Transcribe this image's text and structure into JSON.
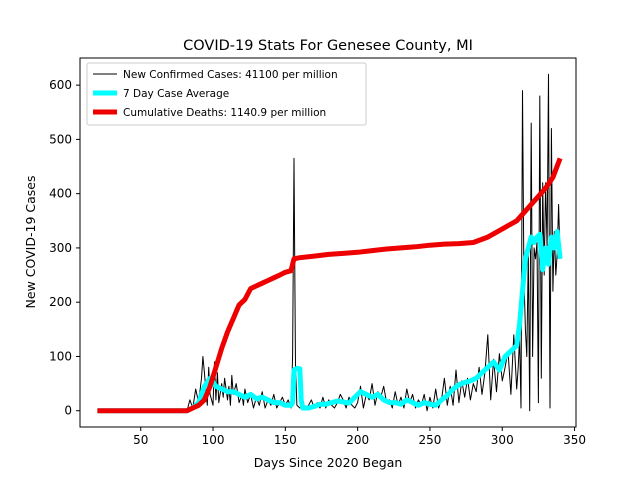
{
  "chart_data": {
    "type": "line",
    "title": "COVID-19 Stats For Genesee County, MI",
    "xlabel": "Days Since 2020 Began",
    "ylabel": "New COVID-19 Cases",
    "xlim": [
      8,
      351
    ],
    "ylim": [
      -30,
      650
    ],
    "xticks": [
      50,
      100,
      150,
      200,
      250,
      300,
      350
    ],
    "yticks": [
      0,
      100,
      200,
      300,
      400,
      500,
      600
    ],
    "grid": false,
    "legend_position": "top-left",
    "series": [
      {
        "name": "New Confirmed Cases: 41100 per million",
        "color": "#000000",
        "width": 1,
        "x": [
          20,
          82,
          84,
          86,
          88,
          90,
          92,
          93,
          94,
          95,
          96,
          97,
          98,
          100,
          101,
          102,
          103,
          104,
          106,
          107,
          108,
          110,
          111,
          112,
          113,
          114,
          116,
          118,
          120,
          121,
          122,
          124,
          126,
          128,
          130,
          132,
          134,
          136,
          138,
          140,
          142,
          144,
          146,
          148,
          150,
          152,
          154,
          155,
          156,
          157,
          158,
          160,
          162,
          164,
          166,
          168,
          170,
          172,
          174,
          176,
          178,
          180,
          182,
          184,
          186,
          188,
          190,
          192,
          194,
          196,
          198,
          200,
          202,
          204,
          206,
          208,
          210,
          212,
          214,
          216,
          218,
          220,
          222,
          224,
          226,
          228,
          230,
          232,
          234,
          236,
          238,
          240,
          242,
          244,
          246,
          248,
          250,
          252,
          254,
          256,
          258,
          260,
          262,
          264,
          266,
          268,
          270,
          272,
          274,
          276,
          278,
          280,
          282,
          284,
          286,
          288,
          290,
          292,
          294,
          296,
          298,
          300,
          302,
          304,
          306,
          308,
          310,
          311,
          312,
          313,
          314,
          315,
          316,
          317,
          318,
          319,
          320,
          321,
          322,
          323,
          324,
          325,
          326,
          327,
          328,
          329,
          330,
          331,
          332,
          333,
          334,
          335,
          336,
          337,
          338,
          339,
          340
        ],
        "y": [
          0,
          0,
          20,
          5,
          40,
          15,
          60,
          100,
          70,
          40,
          10,
          80,
          30,
          10,
          90,
          20,
          70,
          15,
          50,
          25,
          60,
          20,
          45,
          10,
          65,
          30,
          50,
          15,
          30,
          10,
          40,
          15,
          30,
          5,
          25,
          10,
          35,
          5,
          20,
          10,
          30,
          5,
          15,
          25,
          10,
          20,
          5,
          100,
          465,
          80,
          10,
          5,
          15,
          5,
          10,
          20,
          5,
          15,
          5,
          25,
          5,
          20,
          10,
          5,
          15,
          30,
          20,
          5,
          25,
          10,
          5,
          15,
          45,
          5,
          30,
          20,
          50,
          10,
          35,
          25,
          45,
          15,
          20,
          5,
          35,
          10,
          25,
          5,
          40,
          15,
          30,
          5,
          20,
          10,
          30,
          0,
          25,
          5,
          40,
          5,
          20,
          60,
          10,
          45,
          10,
          75,
          15,
          55,
          25,
          60,
          20,
          50,
          35,
          80,
          30,
          70,
          140,
          20,
          95,
          35,
          105,
          55,
          80,
          110,
          30,
          140,
          40,
          80,
          135,
          5,
          590,
          250,
          150,
          100,
          290,
          0,
          530,
          100,
          300,
          280,
          310,
          15,
          580,
          60,
          420,
          250,
          420,
          300,
          620,
          5,
          520,
          220,
          330,
          250,
          290,
          380,
          280
        ]
      },
      {
        "name": "7 Day Case Average",
        "color": "#00ffff",
        "width": 5,
        "x": [
          20,
          82,
          86,
          90,
          94,
          98,
          102,
          106,
          110,
          114,
          118,
          122,
          126,
          130,
          134,
          138,
          142,
          146,
          150,
          154,
          155,
          156,
          158,
          160,
          161,
          162,
          166,
          170,
          174,
          178,
          182,
          186,
          190,
          194,
          198,
          202,
          206,
          210,
          214,
          218,
          222,
          226,
          230,
          234,
          238,
          242,
          246,
          250,
          254,
          258,
          262,
          266,
          270,
          274,
          278,
          282,
          286,
          290,
          294,
          298,
          302,
          306,
          310,
          312,
          314,
          316,
          318,
          320,
          322,
          324,
          326,
          328,
          330,
          332,
          334,
          336,
          338,
          340
        ],
        "y": [
          0,
          0,
          5,
          15,
          45,
          60,
          45,
          40,
          35,
          35,
          30,
          25,
          30,
          22,
          25,
          20,
          15,
          15,
          10,
          10,
          15,
          75,
          78,
          77,
          20,
          5,
          5,
          8,
          12,
          12,
          15,
          18,
          16,
          14,
          25,
          35,
          30,
          25,
          30,
          20,
          15,
          15,
          12,
          20,
          15,
          10,
          15,
          12,
          10,
          20,
          28,
          40,
          48,
          52,
          55,
          60,
          70,
          80,
          90,
          75,
          100,
          110,
          120,
          160,
          220,
          280,
          300,
          320,
          310,
          320,
          325,
          260,
          300,
          270,
          320,
          300,
          330,
          280
        ]
      },
      {
        "name": "Cumulative Deaths: 1140.9 per million",
        "color": "#ee0000",
        "width": 5,
        "x": [
          20,
          82,
          86,
          90,
          94,
          98,
          102,
          106,
          110,
          114,
          118,
          122,
          126,
          130,
          134,
          138,
          142,
          146,
          150,
          154,
          155,
          156,
          160,
          170,
          180,
          190,
          200,
          210,
          220,
          230,
          240,
          250,
          260,
          270,
          280,
          290,
          300,
          310,
          320,
          330,
          335,
          340
        ],
        "y": [
          0,
          0,
          5,
          10,
          20,
          45,
          80,
          115,
          145,
          170,
          195,
          205,
          225,
          230,
          235,
          240,
          245,
          250,
          255,
          258,
          270,
          280,
          282,
          285,
          288,
          290,
          292,
          295,
          298,
          300,
          302,
          305,
          307,
          308,
          310,
          320,
          335,
          350,
          380,
          410,
          430,
          465
        ]
      }
    ]
  }
}
